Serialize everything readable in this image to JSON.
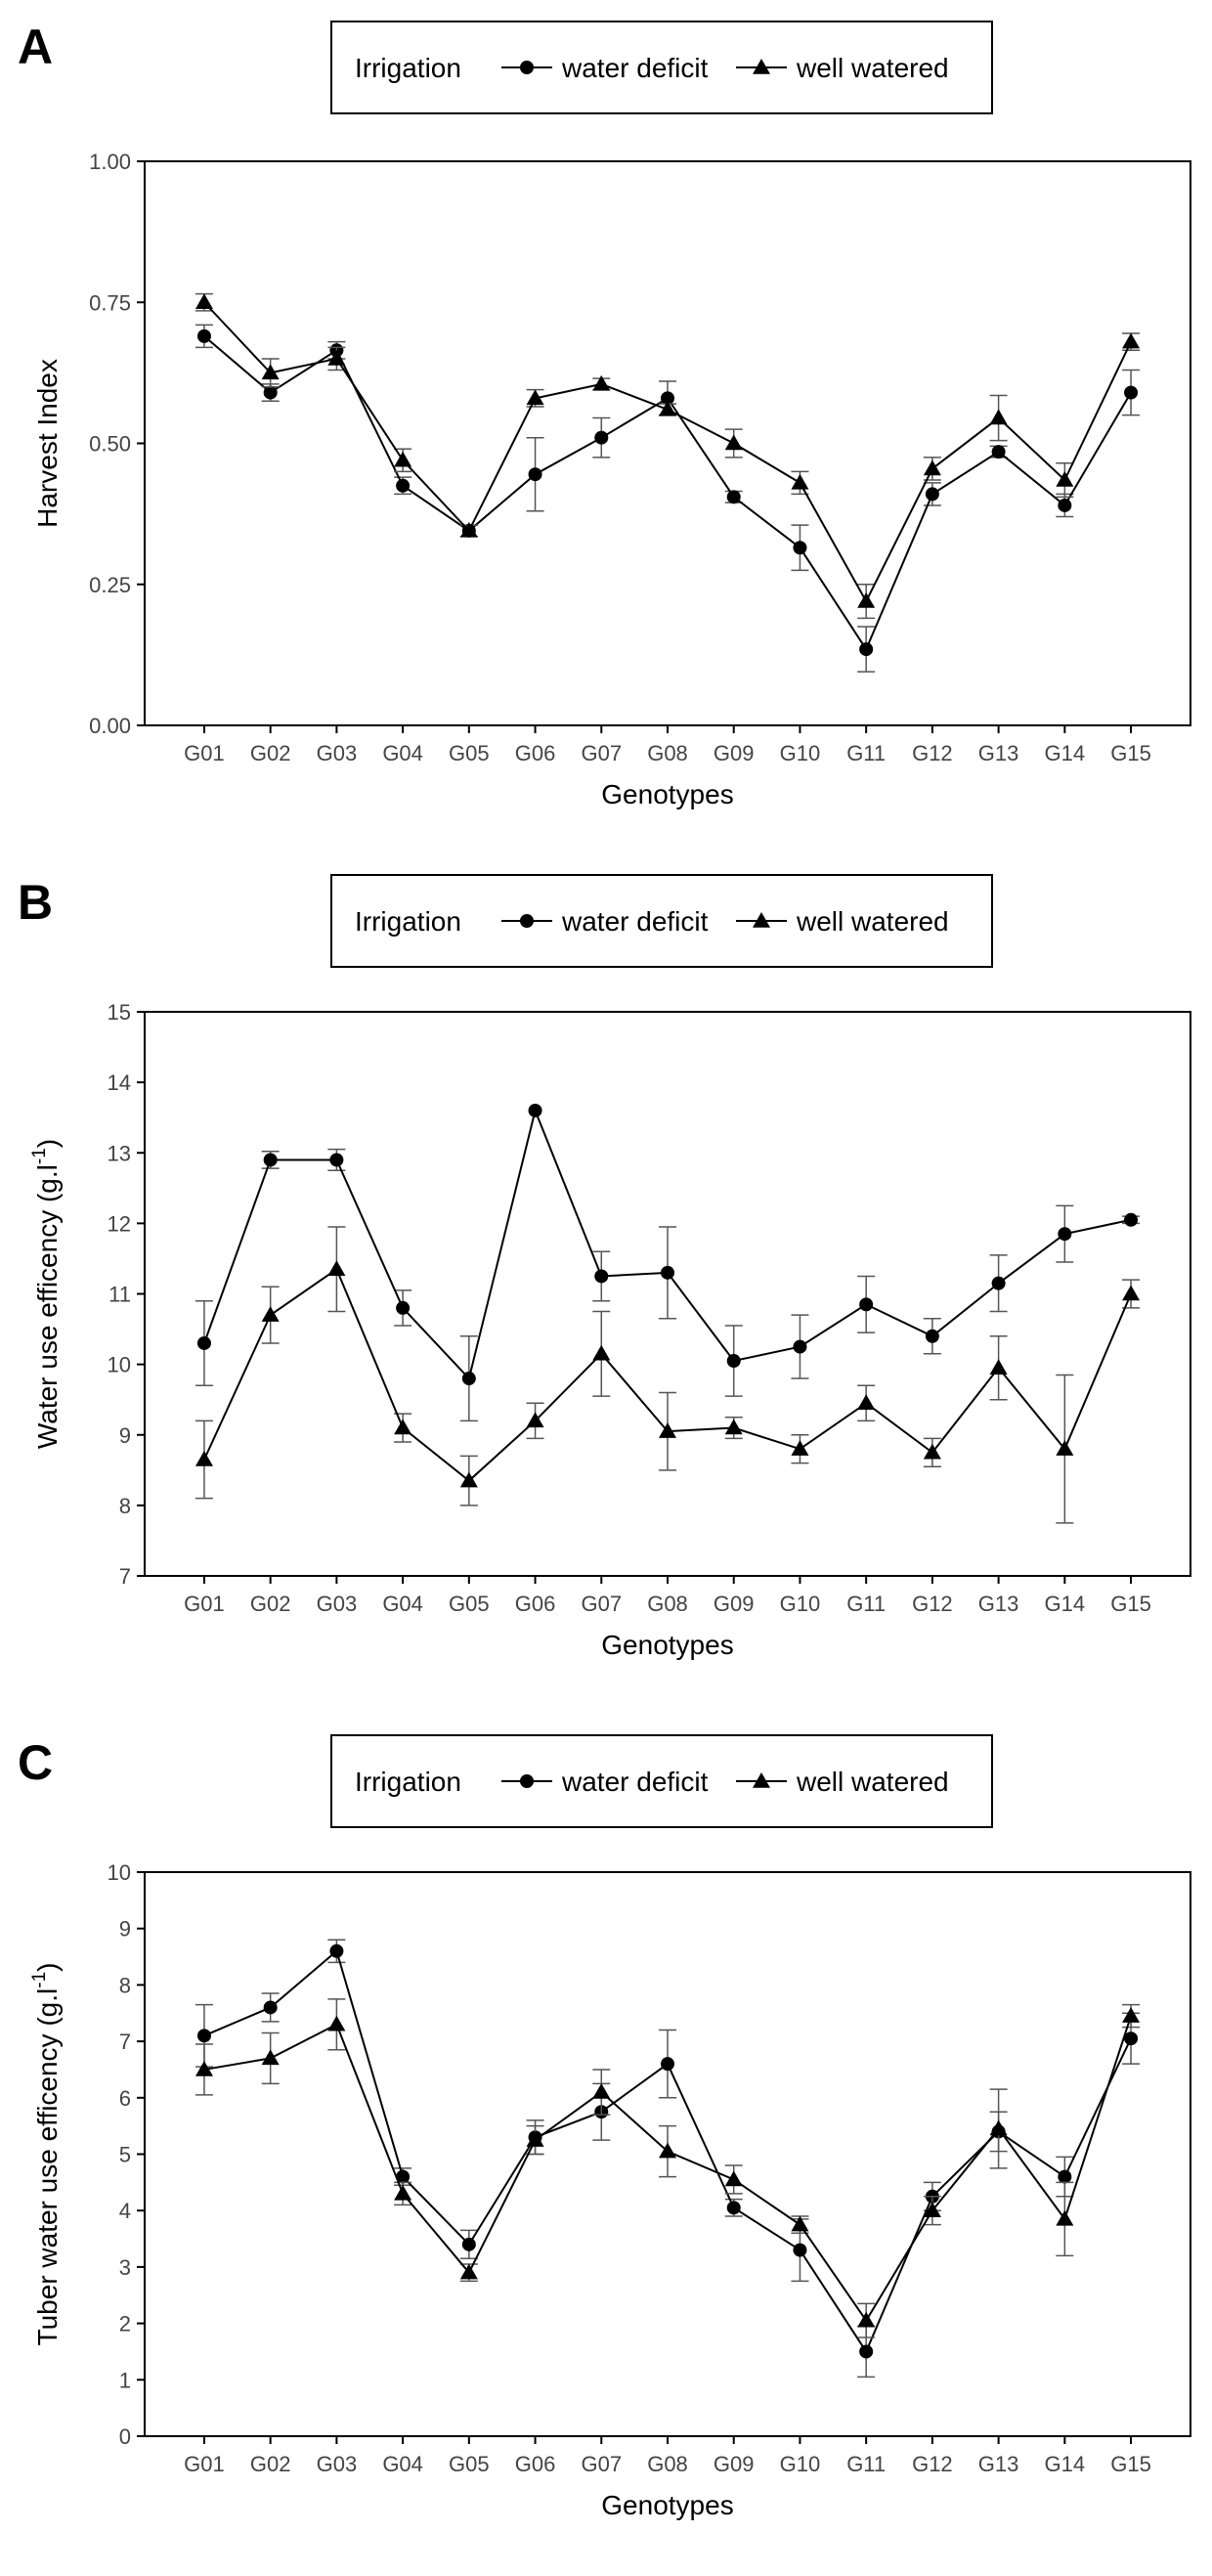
{
  "colors": {
    "series": "#000000",
    "errorbar": "#555555",
    "axis": "#000000"
  },
  "legend": {
    "title": "Irrigation"
  },
  "chart_data": [
    {
      "panel_label": "A",
      "type": "line",
      "xlabel": "Genotypes",
      "ylabel_main": "Harvest Index",
      "ylabel_sup": "",
      "ylabel_tail": "",
      "ylim": [
        0,
        1
      ],
      "yticks": [
        "0.00",
        "0.25",
        "0.50",
        "0.75",
        "1.00"
      ],
      "categories": [
        "G01",
        "G02",
        "G03",
        "G04",
        "G05",
        "G06",
        "G07",
        "G08",
        "G09",
        "G10",
        "G11",
        "G12",
        "G13",
        "G14",
        "G15"
      ],
      "legend_placement": "top-center",
      "series": [
        {
          "name": "water deficit",
          "marker": "circle",
          "values": [
            0.69,
            0.59,
            0.665,
            0.425,
            0.345,
            0.445,
            0.51,
            0.58,
            0.405,
            0.315,
            0.135,
            0.41,
            0.485,
            0.39,
            0.59
          ],
          "errors": [
            0.02,
            0.015,
            0.015,
            0.015,
            0.01,
            0.065,
            0.035,
            0.03,
            0.01,
            0.04,
            0.04,
            0.02,
            0.01,
            0.02,
            0.04
          ]
        },
        {
          "name": "well watered",
          "marker": "triangle",
          "values": [
            0.75,
            0.625,
            0.65,
            0.47,
            0.345,
            0.58,
            0.605,
            0.56,
            0.5,
            0.43,
            0.22,
            0.455,
            0.545,
            0.435,
            0.68
          ],
          "errors": [
            0.015,
            0.025,
            0.02,
            0.02,
            0.01,
            0.015,
            0.01,
            0.01,
            0.025,
            0.02,
            0.03,
            0.02,
            0.04,
            0.03,
            0.015
          ]
        }
      ]
    },
    {
      "panel_label": "B",
      "type": "line",
      "xlabel": "Genotypes",
      "ylabel_main": "Water use efficency (g.l",
      "ylabel_sup": "-1",
      "ylabel_tail": ")",
      "ylim": [
        7,
        15
      ],
      "yticks": [
        "7",
        "8",
        "9",
        "10",
        "11",
        "12",
        "13",
        "14",
        "15"
      ],
      "categories": [
        "G01",
        "G02",
        "G03",
        "G04",
        "G05",
        "G06",
        "G07",
        "G08",
        "G09",
        "G10",
        "G11",
        "G12",
        "G13",
        "G14",
        "G15"
      ],
      "legend_placement": "top-center",
      "series": [
        {
          "name": "water deficit",
          "marker": "circle",
          "values": [
            10.3,
            12.9,
            12.9,
            10.8,
            9.8,
            13.6,
            11.25,
            11.3,
            10.05,
            10.25,
            10.85,
            10.4,
            11.15,
            11.85,
            12.05
          ],
          "errors": [
            0.6,
            0.12,
            0.15,
            0.25,
            0.6,
            0.0,
            0.35,
            0.65,
            0.5,
            0.45,
            0.4,
            0.25,
            0.4,
            0.4,
            0.05
          ]
        },
        {
          "name": "well watered",
          "marker": "triangle",
          "values": [
            8.65,
            10.7,
            11.35,
            9.1,
            8.35,
            9.2,
            10.15,
            9.05,
            9.1,
            8.8,
            9.45,
            8.75,
            9.95,
            8.8,
            11.0
          ],
          "errors": [
            0.55,
            0.4,
            0.6,
            0.2,
            0.35,
            0.25,
            0.6,
            0.55,
            0.15,
            0.2,
            0.25,
            0.2,
            0.45,
            1.05,
            0.2
          ]
        }
      ]
    },
    {
      "panel_label": "C",
      "type": "line",
      "xlabel": "Genotypes",
      "ylabel_main": "Tuber water use efficency (g.l",
      "ylabel_sup": "-1",
      "ylabel_tail": ")",
      "ylim": [
        0,
        10
      ],
      "yticks": [
        "0",
        "1",
        "2",
        "3",
        "4",
        "5",
        "6",
        "7",
        "8",
        "9",
        "10"
      ],
      "categories": [
        "G01",
        "G02",
        "G03",
        "G04",
        "G05",
        "G06",
        "G07",
        "G08",
        "G09",
        "G10",
        "G11",
        "G12",
        "G13",
        "G14",
        "G15"
      ],
      "legend_placement": "top-center",
      "series": [
        {
          "name": "water deficit",
          "marker": "circle",
          "values": [
            7.1,
            7.6,
            8.6,
            4.6,
            3.4,
            5.3,
            5.75,
            6.6,
            4.05,
            3.3,
            1.5,
            4.25,
            5.4,
            4.6,
            7.05
          ],
          "errors": [
            0.55,
            0.25,
            0.2,
            0.15,
            0.25,
            0.3,
            0.5,
            0.6,
            0.15,
            0.55,
            0.45,
            0.25,
            0.35,
            0.35,
            0.45
          ]
        },
        {
          "name": "well watered",
          "marker": "triangle",
          "values": [
            6.5,
            6.7,
            7.3,
            4.3,
            2.9,
            5.25,
            6.1,
            5.05,
            4.55,
            3.75,
            2.05,
            4.0,
            5.45,
            3.85,
            7.45
          ],
          "errors": [
            0.45,
            0.45,
            0.45,
            0.2,
            0.15,
            0.25,
            0.4,
            0.45,
            0.25,
            0.15,
            0.3,
            0.25,
            0.7,
            0.65,
            0.2
          ]
        }
      ]
    }
  ]
}
